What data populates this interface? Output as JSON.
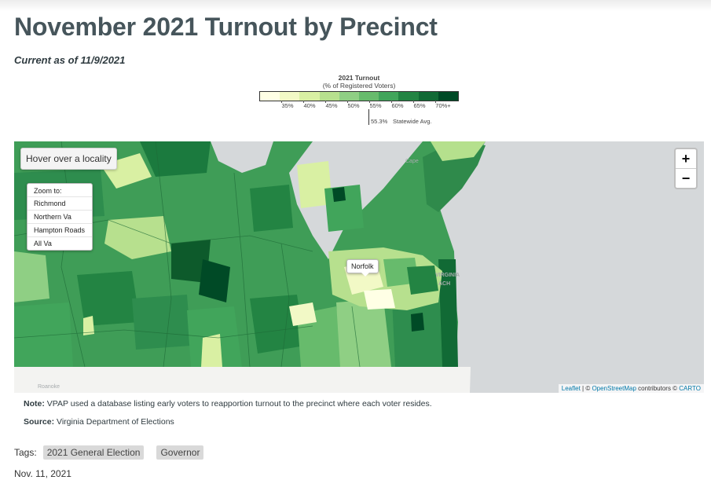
{
  "page": {
    "title": "November 2021 Turnout by Precinct",
    "subtitle": "Current as of 11/9/2021"
  },
  "legend": {
    "title": "2021 Turnout",
    "subtitle": "(% of Registered Voters)",
    "ticks": [
      "35%",
      "40%",
      "45%",
      "50%",
      "55%",
      "60%",
      "65%",
      "70%+"
    ],
    "statewide_avg_value": "55.3%",
    "statewide_avg_label": "Statewide Avg.",
    "colors": [
      "#ffffe5",
      "#f2f9c6",
      "#d9f0a3",
      "#b7e08e",
      "#8fcf84",
      "#67bb6c",
      "#41a55b",
      "#238443",
      "#116a35",
      "#004a26"
    ]
  },
  "map": {
    "hover_text": "Hover over a locality",
    "zoom_title": "Zoom to:",
    "zoom_items": [
      "Richmond",
      "Northern Va",
      "Hampton Roads",
      "All Va"
    ],
    "zoom_in": "+",
    "zoom_out": "−",
    "tooltip": "Norfolk",
    "basemap_labels": {
      "cape": "Cape",
      "virginia": "VIRGINIA",
      "beach": "ACH",
      "roanoke": "Roanoke"
    },
    "attribution": {
      "leaflet": "Leaflet",
      "sep1": " | © ",
      "osm": "OpenStreetMap",
      "mid": " contributors © ",
      "carto": "CARTO"
    }
  },
  "notes": {
    "note_label": "Note:",
    "note_text": " VPAP used a database listing early voters to reapportion turnout to the precinct where each voter resides.",
    "source_label": "Source:",
    "source_text": " Virginia Department of Elections"
  },
  "tags": {
    "label": "Tags:",
    "items": [
      "2021 General Election",
      "Governor"
    ]
  },
  "date": "Nov. 11, 2021"
}
